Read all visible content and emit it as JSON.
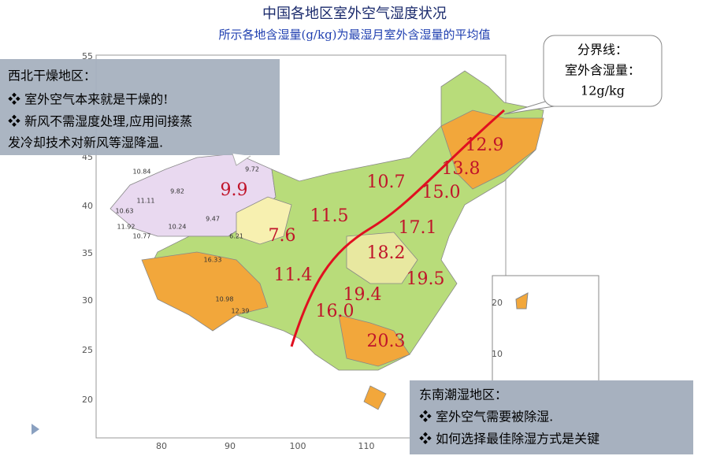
{
  "header": {
    "title": "中国各地区室外空气湿度状况",
    "subtitle": "所示各地含湿量(g/kg)为最湿月室外含湿量的平均值"
  },
  "callouts": {
    "northwest": {
      "heading": "西北干燥地区：",
      "lines": [
        "❖ 室外空气本来就是干燥的!",
        "❖ 新风不需湿度处理,应用间接蒸",
        "发冷却技术对新风等湿降温."
      ]
    },
    "boundary": {
      "lines": [
        "分界线：",
        "室外含湿量：",
        "12g/kg"
      ]
    },
    "southeast": {
      "heading": "东南潮湿地区：",
      "lines": [
        "❖ 室外空气需要被除湿.",
        "❖ 如何选择最佳除湿方式是关键"
      ]
    }
  },
  "map": {
    "x_ticks": [
      "80",
      "90",
      "100",
      "110"
    ],
    "y_ticks": [
      "20",
      "25",
      "30",
      "35",
      "40",
      "45",
      "55"
    ],
    "inset_ticks": [
      "20",
      "10"
    ],
    "region_values": [
      "9.9",
      "10.7",
      "15.0",
      "13.8",
      "12.9",
      "11.5",
      "17.1",
      "7.6",
      "18.2",
      "11.4",
      "19.5",
      "19.4",
      "16.0",
      "20.3"
    ],
    "station_values": [
      "10.84",
      "9.82",
      "10.63",
      "11.11",
      "11.92",
      "10.24",
      "10.77",
      "9.47",
      "9.72",
      "10.98",
      "12.39",
      "16.33",
      "6.21"
    ]
  }
}
